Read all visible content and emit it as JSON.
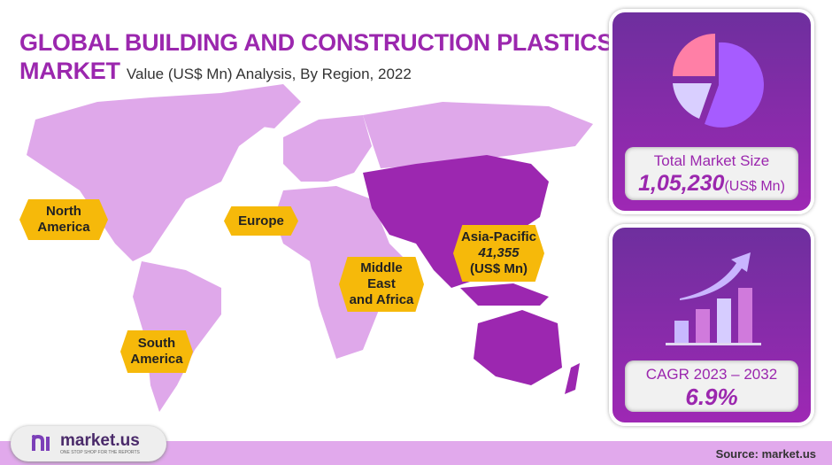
{
  "header": {
    "title": "GLOBAL BUILDING AND CONSTRUCTION PLASTICS",
    "title_line2": "MARKET",
    "subtitle": "Value (US$ Mn) Analysis, By Region, 2022"
  },
  "map": {
    "highlight_color": "#9c27b0",
    "base_color": "#dfa8ea",
    "regions": [
      {
        "name": "North America",
        "line1": "North",
        "line2": "America"
      },
      {
        "name": "Europe",
        "line1": "Europe"
      },
      {
        "name": "Middle East and Africa",
        "line1": "Middle",
        "line2": "East",
        "line3": "and Africa"
      },
      {
        "name": "Asia-Pacific",
        "line1": "Asia-Pacific",
        "value": "41,355",
        "unit": "(US$ Mn)"
      },
      {
        "name": "South America",
        "line1": "South",
        "line2": "America"
      }
    ]
  },
  "cards": {
    "market_size": {
      "icon": "pie-chart-icon",
      "label": "Total Market Size",
      "value": "1,05,230",
      "unit": "(US$ Mn)"
    },
    "cagr": {
      "icon": "growth-chart-icon",
      "label": "CAGR 2023 – 2032",
      "value": "6.9%"
    }
  },
  "footer": {
    "logo": "market.us",
    "tagline": "ONE STOP SHOP FOR THE REPORTS",
    "source": "Source: market.us"
  },
  "colors": {
    "accent": "#9b27ae",
    "label_bg": "#f6b90a",
    "footer_bg": "#e1a9ec"
  }
}
